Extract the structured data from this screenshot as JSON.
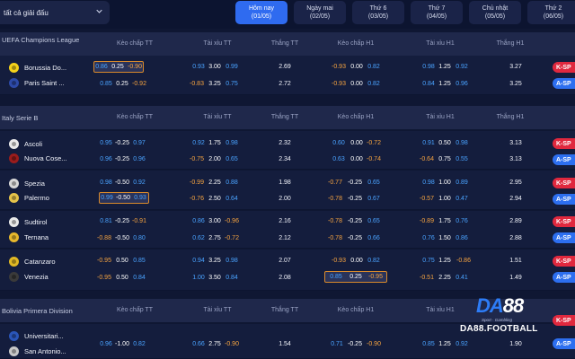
{
  "header": {
    "league_filter": "tất cả giải đấu",
    "tabs": [
      {
        "label": "Hôm nay",
        "date": "(01/05)",
        "active": true
      },
      {
        "label": "Ngày mai",
        "date": "(02/05)",
        "active": false
      },
      {
        "label": "Thứ 6",
        "date": "(03/05)",
        "active": false
      },
      {
        "label": "Thứ 7",
        "date": "(04/05)",
        "active": false
      },
      {
        "label": "Chủ nhật",
        "date": "(05/05)",
        "active": false
      },
      {
        "label": "Thứ 2",
        "date": "(06/05)",
        "active": false
      }
    ]
  },
  "columns": {
    "handicap_ft": "Kèo chấp TT",
    "overunder_ft": "Tài xỉu TT",
    "win_ft": "Thắng TT",
    "handicap_h1": "Kèo chấp H1",
    "overunder_h1": "Tài xỉu H1",
    "win_h1": "Thắng H1"
  },
  "buttons": {
    "k": "K-SP",
    "a": "A-SP"
  },
  "leagues": [
    {
      "name": "UEFA Champions League",
      "matches": [
        {
          "home": "Borussia Do...",
          "away": "Paris Saint ...",
          "rows": [
            {
              "hft": [
                "0.86",
                "0.25",
                "-0.90"
              ],
              "ouft": [
                "0.93",
                "3.00",
                "0.99"
              ],
              "win": "2.69",
              "hh1": [
                "-0.93",
                "0.00",
                "0.82"
              ],
              "ouh1": [
                "0.98",
                "1.25",
                "0.92"
              ],
              "winh1": "3.27"
            },
            {
              "hft": [
                "0.85",
                "0.25",
                "-0.92"
              ],
              "ouft": [
                "-0.83",
                "3.25",
                "0.75"
              ],
              "win": "2.72",
              "hh1": [
                "-0.93",
                "0.00",
                "0.82"
              ],
              "ouh1": [
                "0.84",
                "1.25",
                "0.96"
              ],
              "winh1": "3.25"
            }
          ]
        }
      ]
    },
    {
      "name": "Italy Serie B",
      "matches": [
        {
          "home": "Ascoli",
          "away": "Nuova Cose...",
          "rows": [
            {
              "hft": [
                "0.95",
                "-0.25",
                "0.97"
              ],
              "ouft": [
                "0.92",
                "1.75",
                "0.98"
              ],
              "win": "2.32",
              "hh1": [
                "0.60",
                "0.00",
                "-0.72"
              ],
              "ouh1": [
                "0.91",
                "0.50",
                "0.98"
              ],
              "winh1": "3.13"
            },
            {
              "hft": [
                "0.96",
                "-0.25",
                "0.96"
              ],
              "ouft": [
                "-0.75",
                "2.00",
                "0.65"
              ],
              "win": "2.34",
              "hh1": [
                "0.63",
                "0.00",
                "-0.74"
              ],
              "ouh1": [
                "-0.64",
                "0.75",
                "0.55"
              ],
              "winh1": "3.13"
            }
          ]
        },
        {
          "home": "Spezia",
          "away": "Palermo",
          "rows": [
            {
              "hft": [
                "0.98",
                "-0.50",
                "0.92"
              ],
              "ouft": [
                "-0.99",
                "2.25",
                "0.88"
              ],
              "win": "1.98",
              "hh1": [
                "-0.77",
                "-0.25",
                "0.65"
              ],
              "ouh1": [
                "0.98",
                "1.00",
                "0.89"
              ],
              "winh1": "2.95"
            },
            {
              "hft": [
                "0.99",
                "-0.50",
                "0.93"
              ],
              "ouft": [
                "-0.76",
                "2.50",
                "0.64"
              ],
              "win": "2.00",
              "hh1": [
                "-0.78",
                "-0.25",
                "0.67"
              ],
              "ouh1": [
                "-0.57",
                "1.00",
                "0.47"
              ],
              "winh1": "2.94"
            }
          ]
        },
        {
          "home": "Sudtirol",
          "away": "Ternana",
          "rows": [
            {
              "hft": [
                "0.81",
                "-0.25",
                "-0.91"
              ],
              "ouft": [
                "0.86",
                "3.00",
                "-0.96"
              ],
              "win": "2.16",
              "hh1": [
                "-0.78",
                "-0.25",
                "0.65"
              ],
              "ouh1": [
                "-0.89",
                "1.75",
                "0.76"
              ],
              "winh1": "2.89"
            },
            {
              "hft": [
                "-0.88",
                "-0.50",
                "0.80"
              ],
              "ouft": [
                "0.62",
                "2.75",
                "-0.72"
              ],
              "win": "2.12",
              "hh1": [
                "-0.78",
                "-0.25",
                "0.66"
              ],
              "ouh1": [
                "0.76",
                "1.50",
                "0.86"
              ],
              "winh1": "2.88"
            }
          ]
        },
        {
          "home": "Catanzaro",
          "away": "Venezia",
          "rows": [
            {
              "hft": [
                "-0.95",
                "0.50",
                "0.85"
              ],
              "ouft": [
                "0.94",
                "3.25",
                "0.98"
              ],
              "win": "2.07",
              "hh1": [
                "-0.93",
                "0.00",
                "0.82"
              ],
              "ouh1": [
                "0.75",
                "1.25",
                "-0.86"
              ],
              "winh1": "1.51"
            },
            {
              "hft": [
                "-0.95",
                "0.50",
                "0.84"
              ],
              "ouft": [
                "1.00",
                "3.50",
                "0.84"
              ],
              "win": "2.08",
              "hh1": [
                "0.85",
                "0.25",
                "-0.95"
              ],
              "ouh1": [
                "-0.51",
                "2.25",
                "0.41"
              ],
              "winh1": "1.49"
            }
          ]
        }
      ]
    },
    {
      "name": "Bolivia Primera Division",
      "matches": [
        {
          "home": "Universitari...",
          "away": "San Antonio...",
          "rows": [
            {
              "hft": [
                "0.96",
                "-1.00",
                "0.82"
              ],
              "ouft": [
                "0.66",
                "2.75",
                "-0.90"
              ],
              "win": "1.54",
              "hh1": [
                "0.71",
                "-0.25",
                "-0.90"
              ],
              "ouh1": [
                "0.85",
                "1.25",
                "0.92"
              ],
              "winh1": "1.90"
            }
          ]
        }
      ]
    }
  ],
  "logo": {
    "mark_a": "DA",
    "mark_b": "88",
    "tagline": "Sport · Gambling",
    "site": "DA88.FOOTBALL"
  }
}
